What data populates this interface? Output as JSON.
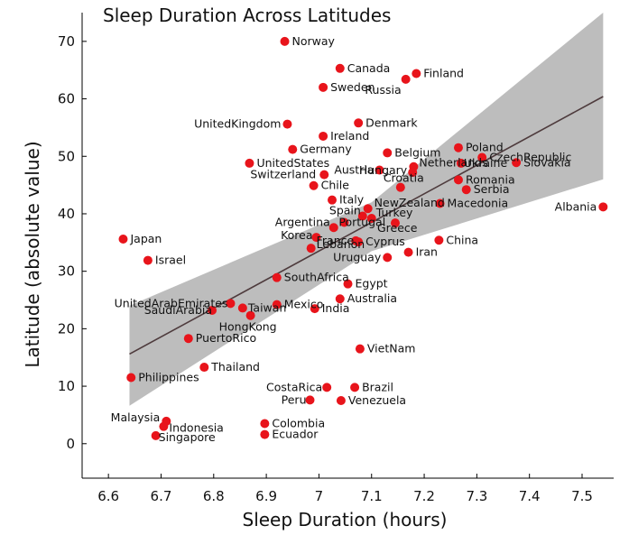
{
  "chart_data": {
    "type": "scatter",
    "title": "Sleep Duration Across Latitudes",
    "xlabel": "Sleep Duration (hours)",
    "ylabel": "Latitude (absolute value)",
    "xlim": [
      6.55,
      7.56
    ],
    "ylim": [
      -6,
      75
    ],
    "xticks": [
      "6.6",
      "6.7",
      "6.8",
      "6.9",
      "7",
      "7.1",
      "7.2",
      "7.3",
      "7.4",
      "7.5"
    ],
    "yticks": [
      "0",
      "10",
      "20",
      "30",
      "40",
      "50",
      "60",
      "70"
    ],
    "grid": false,
    "point_color": "#e8141b",
    "points": [
      {
        "label": "Norway",
        "x": 6.935,
        "y": 70.0
      },
      {
        "label": "Canada",
        "x": 7.04,
        "y": 65.3
      },
      {
        "label": "Finland",
        "x": 7.185,
        "y": 64.4
      },
      {
        "label": "Russia",
        "x": 7.165,
        "y": 63.4
      },
      {
        "label": "Sweden",
        "x": 7.008,
        "y": 62.0
      },
      {
        "label": "UnitedKingdom",
        "x": 6.94,
        "y": 55.6
      },
      {
        "label": "Denmark",
        "x": 7.075,
        "y": 55.8
      },
      {
        "label": "Ireland",
        "x": 7.008,
        "y": 53.5
      },
      {
        "label": "Germany",
        "x": 6.95,
        "y": 51.2
      },
      {
        "label": "Belgium",
        "x": 7.13,
        "y": 50.6
      },
      {
        "label": "Poland",
        "x": 7.265,
        "y": 51.5
      },
      {
        "label": "CzechRepublic",
        "x": 7.31,
        "y": 49.8
      },
      {
        "label": "Ukraine",
        "x": 7.27,
        "y": 48.8
      },
      {
        "label": "Slovakia",
        "x": 7.375,
        "y": 48.9
      },
      {
        "label": "UnitedStates",
        "x": 6.868,
        "y": 48.8
      },
      {
        "label": "Netherlands",
        "x": 7.18,
        "y": 48.2
      },
      {
        "label": "Austria",
        "x": 7.115,
        "y": 47.6
      },
      {
        "label": "Switzerland",
        "x": 7.01,
        "y": 46.8
      },
      {
        "label": "Hungary",
        "x": 7.178,
        "y": 47.2
      },
      {
        "label": "Romania",
        "x": 7.265,
        "y": 45.9
      },
      {
        "label": "Chile",
        "x": 6.99,
        "y": 44.9
      },
      {
        "label": "Croatia",
        "x": 7.155,
        "y": 44.6
      },
      {
        "label": "Serbia",
        "x": 7.28,
        "y": 44.2
      },
      {
        "label": "Italy",
        "x": 7.025,
        "y": 42.4
      },
      {
        "label": "Macedonia",
        "x": 7.23,
        "y": 41.8
      },
      {
        "label": "Albania",
        "x": 7.54,
        "y": 41.2
      },
      {
        "label": "NewZealand",
        "x": 7.093,
        "y": 40.9
      },
      {
        "label": "Turkey",
        "x": 7.1,
        "y": 39.2
      },
      {
        "label": "Spain",
        "x": 7.083,
        "y": 39.6
      },
      {
        "label": "Portugal",
        "x": 7.048,
        "y": 38.5
      },
      {
        "label": "Argentina",
        "x": 7.028,
        "y": 37.6
      },
      {
        "label": "Greece",
        "x": 7.145,
        "y": 38.4
      },
      {
        "label": "Korea",
        "x": 6.995,
        "y": 35.9
      },
      {
        "label": "China",
        "x": 7.228,
        "y": 35.4
      },
      {
        "label": "Japan",
        "x": 6.628,
        "y": 35.6
      },
      {
        "label": "France",
        "x": 7.07,
        "y": 35.3
      },
      {
        "label": "Cyprus",
        "x": 7.075,
        "y": 35.1
      },
      {
        "label": "Lebanon",
        "x": 6.985,
        "y": 34.0
      },
      {
        "label": "Iran",
        "x": 7.17,
        "y": 33.3
      },
      {
        "label": "Uruguay",
        "x": 7.13,
        "y": 32.4
      },
      {
        "label": "Israel",
        "x": 6.675,
        "y": 31.9
      },
      {
        "label": "SouthAfrica",
        "x": 6.92,
        "y": 28.9
      },
      {
        "label": "Egypt",
        "x": 7.055,
        "y": 27.8
      },
      {
        "label": "Australia",
        "x": 7.04,
        "y": 25.2
      },
      {
        "label": "UnitedArabEmirates",
        "x": 6.832,
        "y": 24.4
      },
      {
        "label": "SaudiArabia",
        "x": 6.797,
        "y": 23.2
      },
      {
        "label": "Taiwan",
        "x": 6.855,
        "y": 23.6
      },
      {
        "label": "Mexico",
        "x": 6.92,
        "y": 24.2
      },
      {
        "label": "India",
        "x": 6.992,
        "y": 23.5
      },
      {
        "label": "HongKong",
        "x": 6.87,
        "y": 22.3
      },
      {
        "label": "PuertoRico",
        "x": 6.752,
        "y": 18.3
      },
      {
        "label": "VietNam",
        "x": 7.078,
        "y": 16.5
      },
      {
        "label": "Thailand",
        "x": 6.782,
        "y": 13.3
      },
      {
        "label": "Philippines",
        "x": 6.643,
        "y": 11.5
      },
      {
        "label": "CostaRica",
        "x": 7.015,
        "y": 9.8
      },
      {
        "label": "Brazil",
        "x": 7.068,
        "y": 9.8
      },
      {
        "label": "Peru",
        "x": 6.983,
        "y": 7.6
      },
      {
        "label": "Venezuela",
        "x": 7.042,
        "y": 7.5
      },
      {
        "label": "Malaysia",
        "x": 6.71,
        "y": 3.9
      },
      {
        "label": "Indonesia",
        "x": 6.705,
        "y": 3.0
      },
      {
        "label": "Colombia",
        "x": 6.897,
        "y": 3.5
      },
      {
        "label": "Singapore",
        "x": 6.69,
        "y": 1.4
      },
      {
        "label": "Ecuador",
        "x": 6.897,
        "y": 1.6
      }
    ],
    "regression": {
      "line": [
        [
          6.64,
          15.6
        ],
        [
          7.54,
          60.4
        ]
      ],
      "band_upper": [
        [
          6.64,
          24.0
        ],
        [
          7.1,
          42.0
        ],
        [
          7.54,
          75.0
        ]
      ],
      "band_lower": [
        [
          6.64,
          6.6
        ],
        [
          7.1,
          33.5
        ],
        [
          7.54,
          46.0
        ]
      ],
      "line_color": "#4e3b3d",
      "band_color": "#bdbdbd"
    }
  }
}
